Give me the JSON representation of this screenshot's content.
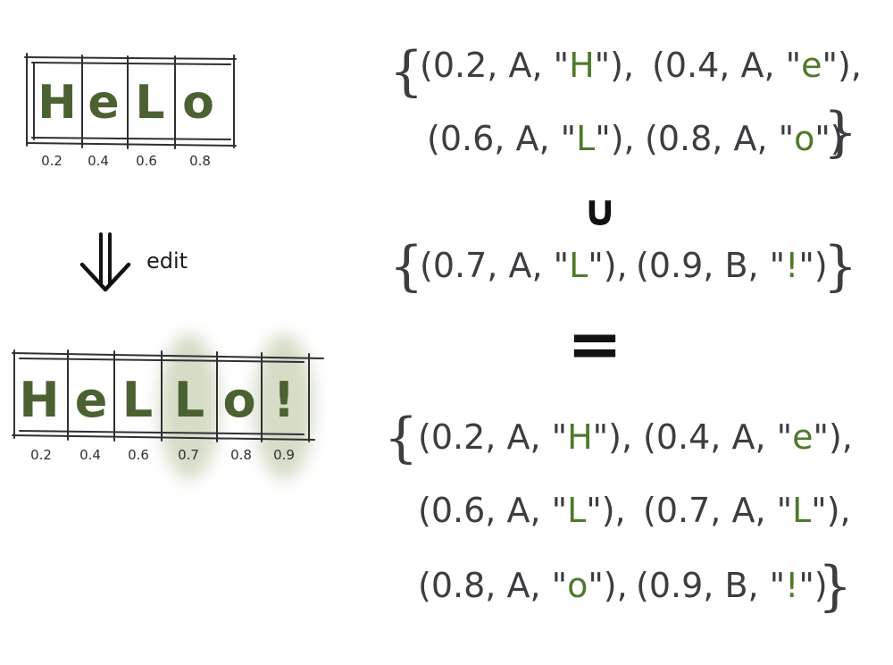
{
  "diagram": {
    "before": {
      "cells": [
        {
          "char": "H",
          "pos": "0.2"
        },
        {
          "char": "e",
          "pos": "0.4"
        },
        {
          "char": "L",
          "pos": "0.6"
        },
        {
          "char": "o",
          "pos": "0.8"
        }
      ]
    },
    "edit_label": "edit",
    "after": {
      "cells": [
        {
          "char": "H",
          "pos": "0.2",
          "highlight": false
        },
        {
          "char": "e",
          "pos": "0.4",
          "highlight": false
        },
        {
          "char": "L",
          "pos": "0.6",
          "highlight": false
        },
        {
          "char": "L",
          "pos": "0.7",
          "highlight": true
        },
        {
          "char": "o",
          "pos": "0.8",
          "highlight": false
        },
        {
          "char": "!",
          "pos": "0.9",
          "highlight": true
        }
      ]
    },
    "set_before": [
      {
        "pos": "0.2",
        "site": "A",
        "char": "H"
      },
      {
        "pos": "0.4",
        "site": "A",
        "char": "e"
      },
      {
        "pos": "0.6",
        "site": "A",
        "char": "L"
      },
      {
        "pos": "0.8",
        "site": "A",
        "char": "o"
      }
    ],
    "union_symbol": "∪",
    "set_added": [
      {
        "pos": "0.7",
        "site": "A",
        "char": "L"
      },
      {
        "pos": "0.9",
        "site": "B",
        "char": "!"
      }
    ],
    "equals_symbol": "=",
    "set_result": [
      {
        "pos": "0.2",
        "site": "A",
        "char": "H"
      },
      {
        "pos": "0.4",
        "site": "A",
        "char": "e"
      },
      {
        "pos": "0.6",
        "site": "A",
        "char": "L"
      },
      {
        "pos": "0.7",
        "site": "A",
        "char": "L"
      },
      {
        "pos": "0.8",
        "site": "A",
        "char": "o"
      },
      {
        "pos": "0.9",
        "site": "B",
        "char": "!"
      }
    ],
    "colors": {
      "ink": "#3b3d40",
      "letter": "#4c6131",
      "tuple_char": "#4e7a2a",
      "highlight": "#cfd6bf"
    }
  }
}
